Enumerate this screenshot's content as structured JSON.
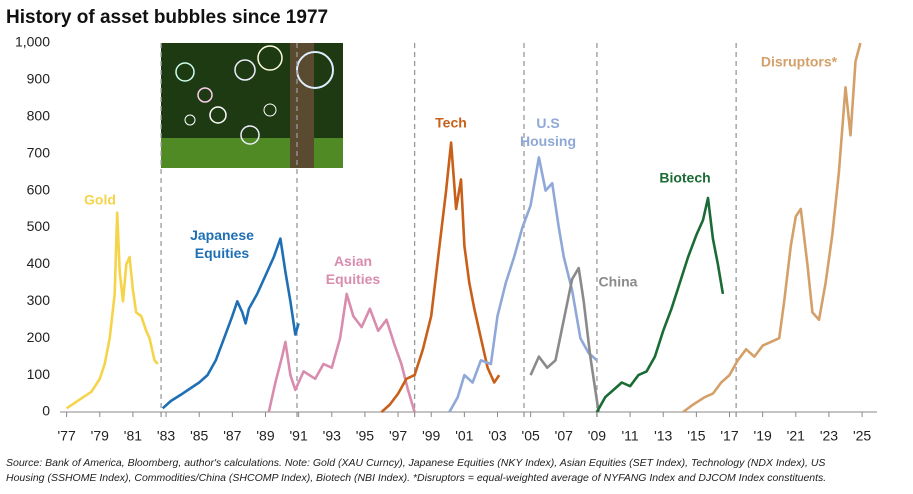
{
  "chart_data": {
    "type": "line",
    "title": "History of asset bubbles since 1977",
    "source": [
      "Source: Bank of America, Bloomberg, author's calculations. Note: Gold (XAU Curncy), Japanese Equities (NKY Index), Asian Equities (SET Index), Technology (NDX Index), US",
      "Housing (SSHOME Index), Commodities/China (SHCOMP Index), Biotech (NBI Index). *Disruptors = equal-weighted average of NYFANG Index and DJCOM Index constituents."
    ],
    "xlim": [
      1976.6,
      2025.9
    ],
    "ylim": [
      0,
      1000
    ],
    "yticks": [
      0,
      100,
      200,
      300,
      400,
      500,
      600,
      700,
      800,
      900,
      {
        "value": 1000,
        "label": "1,000"
      }
    ],
    "xticks": [
      {
        "value": 1977,
        "label": "'77"
      },
      {
        "value": 1979,
        "label": "'79"
      },
      {
        "value": 1981,
        "label": "'81"
      },
      {
        "value": 1983,
        "label": "'83"
      },
      {
        "value": 1985,
        "label": "'85"
      },
      {
        "value": 1987,
        "label": "'87"
      },
      {
        "value": 1989,
        "label": "'89"
      },
      {
        "value": 1991,
        "label": "'91"
      },
      {
        "value": 1993,
        "label": "'93"
      },
      {
        "value": 1995,
        "label": "'95"
      },
      {
        "value": 1997,
        "label": "'97"
      },
      {
        "value": 1999,
        "label": "'99"
      },
      {
        "value": 2001,
        "label": "'01"
      },
      {
        "value": 2003,
        "label": "'03"
      },
      {
        "value": 2005,
        "label": "'05"
      },
      {
        "value": 2007,
        "label": "'07"
      },
      {
        "value": 2009,
        "label": "'09"
      },
      {
        "value": 2011,
        "label": "'11"
      },
      {
        "value": 2013,
        "label": "'13"
      },
      {
        "value": 2015,
        "label": "'15"
      },
      {
        "value": 2017,
        "label": "'17"
      },
      {
        "value": 2019,
        "label": "'19"
      },
      {
        "value": 2021,
        "label": "'21"
      },
      {
        "value": 2023,
        "label": "'23"
      },
      {
        "value": 2025,
        "label": "'25"
      }
    ],
    "separators": [
      1982.7,
      1990.9,
      1998.0,
      2004.6,
      2009.0,
      2017.4
    ],
    "series": [
      {
        "name": "Gold",
        "color": "#f5d44a",
        "x": [
          1977,
          1977.5,
          1978,
          1978.5,
          1979,
          1979.3,
          1979.6,
          1979.9,
          1980.05,
          1980.2,
          1980.4,
          1980.6,
          1980.8,
          1981,
          1981.2,
          1981.5,
          1981.8,
          1982,
          1982.3,
          1982.5
        ],
        "values": [
          10,
          25,
          40,
          55,
          90,
          130,
          200,
          320,
          540,
          380,
          300,
          400,
          420,
          330,
          270,
          260,
          220,
          200,
          140,
          130
        ]
      },
      {
        "name": "Japanese Equities",
        "color": "#1f6fb5",
        "x": [
          1982.8,
          1983.3,
          1984,
          1984.5,
          1985,
          1985.5,
          1986,
          1986.5,
          1987,
          1987.3,
          1987.6,
          1987.8,
          1988,
          1988.5,
          1989,
          1989.5,
          1989.9,
          1990.2,
          1990.5,
          1990.8,
          1991
        ],
        "values": [
          10,
          30,
          50,
          65,
          80,
          100,
          140,
          200,
          260,
          300,
          270,
          240,
          280,
          320,
          370,
          420,
          470,
          380,
          300,
          210,
          240
        ]
      },
      {
        "name": "Asian Equities",
        "color": "#d98cad",
        "x": [
          1989.2,
          1989.6,
          1990,
          1990.2,
          1990.5,
          1990.8,
          1991.3,
          1992,
          1992.5,
          1993,
          1993.5,
          1993.9,
          1994.3,
          1994.8,
          1995.3,
          1995.8,
          1996.3,
          1996.8,
          1997.2,
          1997.6,
          1998
        ],
        "values": [
          0,
          80,
          150,
          190,
          100,
          60,
          110,
          90,
          130,
          120,
          200,
          320,
          260,
          230,
          280,
          220,
          250,
          180,
          130,
          60,
          0
        ]
      },
      {
        "name": "Tech",
        "color": "#c8601a",
        "x": [
          1996,
          1996.5,
          1997,
          1997.5,
          1998,
          1998.5,
          1999,
          1999.5,
          1999.9,
          2000.2,
          2000.5,
          2000.8,
          2001,
          2001.3,
          2001.6,
          2002,
          2002.4,
          2002.8,
          2003.1
        ],
        "values": [
          0,
          20,
          50,
          90,
          100,
          170,
          260,
          450,
          600,
          730,
          550,
          630,
          450,
          350,
          280,
          200,
          120,
          80,
          100
        ]
      },
      {
        "name": "U.S Housing",
        "color": "#8fa8d8",
        "x": [
          2000.1,
          2000.6,
          2001,
          2001.5,
          2002,
          2002.6,
          2003,
          2003.5,
          2004,
          2004.5,
          2005,
          2005.5,
          2005.9,
          2006.3,
          2006.7,
          2007,
          2007.5,
          2008,
          2008.5,
          2009
        ],
        "values": [
          0,
          40,
          100,
          80,
          140,
          130,
          260,
          350,
          420,
          500,
          560,
          690,
          600,
          620,
          500,
          420,
          330,
          200,
          160,
          140
        ]
      },
      {
        "name": "China",
        "color": "#8a8a8a",
        "x": [
          2005,
          2005.5,
          2006,
          2006.5,
          2007,
          2007.5,
          2007.9,
          2008.2,
          2008.6,
          2008.9,
          2009.1
        ],
        "values": [
          100,
          150,
          120,
          140,
          250,
          360,
          390,
          300,
          150,
          60,
          0
        ]
      },
      {
        "name": "Biotech",
        "color": "#1a6b35",
        "x": [
          2009,
          2009.5,
          2010,
          2010.5,
          2011,
          2011.5,
          2012,
          2012.5,
          2013,
          2013.5,
          2014,
          2014.5,
          2015,
          2015.4,
          2015.7,
          2016,
          2016.3,
          2016.6
        ],
        "values": [
          0,
          40,
          60,
          80,
          70,
          100,
          110,
          150,
          220,
          280,
          350,
          420,
          480,
          520,
          580,
          470,
          400,
          320
        ]
      },
      {
        "name": "Disruptors*",
        "color": "#d4a06a",
        "x": [
          2014.2,
          2014.8,
          2015.5,
          2016,
          2016.5,
          2017,
          2017.5,
          2018,
          2018.5,
          2019,
          2019.5,
          2020,
          2020.3,
          2020.7,
          2021,
          2021.3,
          2021.7,
          2022,
          2022.4,
          2022.8,
          2023.2,
          2023.6,
          2024,
          2024.3,
          2024.6,
          2024.9
        ],
        "values": [
          0,
          20,
          40,
          50,
          80,
          100,
          140,
          170,
          150,
          180,
          190,
          200,
          300,
          450,
          530,
          550,
          400,
          270,
          250,
          350,
          480,
          650,
          880,
          750,
          950,
          1000
        ]
      }
    ]
  }
}
